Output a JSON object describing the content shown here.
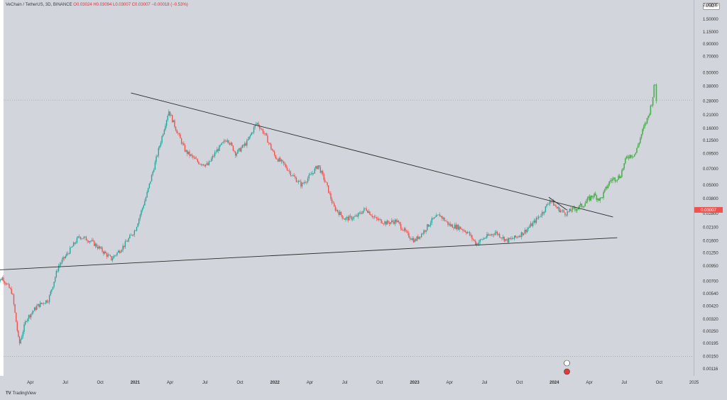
{
  "header": {
    "symbol": "VeChain / TetherUS, 3D, BINANCE",
    "o": "O0.03024",
    "h": "H0.03094",
    "l": "L0.03007",
    "c": "C0.03007",
    "chg": "−0.00018 (−0.53%)"
  },
  "currency_button": "USDT",
  "price_tag": "0.03007",
  "brand": "TradingView",
  "colors": {
    "background": "#d3d5dc",
    "up_candle": "#26a69a",
    "down_candle": "#ef5350",
    "projection": "#4caf50",
    "trendline": "#2b2b2b",
    "price_tag": "#ef5350"
  },
  "chart_data": {
    "type": "candlestick",
    "scale": "log",
    "ylim": [
      0.00116,
      2.0
    ],
    "y_ticks": [
      "2.00000",
      "1.50000",
      "1.15000",
      "0.90000",
      "0.70000",
      "0.50000",
      "0.38000",
      "0.28000",
      "0.21000",
      "0.16000",
      "0.12500",
      "0.09500",
      "0.07000",
      "0.05000",
      "0.03800",
      "0.02800",
      "0.02100",
      "0.01600",
      "0.01250",
      "0.00950",
      "0.00700",
      "0.00540",
      "0.00420",
      "0.00320",
      "0.00250",
      "0.00195",
      "0.00150",
      "0.00116"
    ],
    "x_ticks": [
      {
        "label": "Apr",
        "t": 2020.25
      },
      {
        "label": "Jul",
        "t": 2020.5
      },
      {
        "label": "Oct",
        "t": 2020.75
      },
      {
        "label": "2021",
        "t": 2021.0,
        "bold": true
      },
      {
        "label": "Apr",
        "t": 2021.25
      },
      {
        "label": "Jul",
        "t": 2021.5
      },
      {
        "label": "Oct",
        "t": 2021.75
      },
      {
        "label": "2022",
        "t": 2022.0,
        "bold": true
      },
      {
        "label": "Apr",
        "t": 2022.25
      },
      {
        "label": "Jul",
        "t": 2022.5
      },
      {
        "label": "Oct",
        "t": 2022.75
      },
      {
        "label": "2023",
        "t": 2023.0,
        "bold": true
      },
      {
        "label": "Apr",
        "t": 2023.25
      },
      {
        "label": "Jul",
        "t": 2023.5
      },
      {
        "label": "Oct",
        "t": 2023.75
      },
      {
        "label": "2024",
        "t": 2024.0,
        "bold": true
      },
      {
        "label": "Apr",
        "t": 2024.25
      },
      {
        "label": "Jul",
        "t": 2024.5
      },
      {
        "label": "Oct",
        "t": 2024.75
      },
      {
        "label": "2025",
        "t": 2025.0
      }
    ],
    "price_path": [
      [
        2020.0,
        0.0065
      ],
      [
        2020.05,
        0.0075
      ],
      [
        2020.12,
        0.0055
      ],
      [
        2020.17,
        0.0019
      ],
      [
        2020.22,
        0.0032
      ],
      [
        2020.3,
        0.0042
      ],
      [
        2020.38,
        0.0048
      ],
      [
        2020.45,
        0.0095
      ],
      [
        2020.52,
        0.0125
      ],
      [
        2020.6,
        0.0175
      ],
      [
        2020.68,
        0.016
      ],
      [
        2020.75,
        0.0135
      ],
      [
        2020.83,
        0.011
      ],
      [
        2020.92,
        0.0145
      ],
      [
        2021.0,
        0.02
      ],
      [
        2021.08,
        0.04
      ],
      [
        2021.16,
        0.095
      ],
      [
        2021.24,
        0.23
      ],
      [
        2021.29,
        0.16
      ],
      [
        2021.36,
        0.1
      ],
      [
        2021.45,
        0.08
      ],
      [
        2021.52,
        0.075
      ],
      [
        2021.58,
        0.1
      ],
      [
        2021.66,
        0.13
      ],
      [
        2021.72,
        0.095
      ],
      [
        2021.8,
        0.12
      ],
      [
        2021.87,
        0.18
      ],
      [
        2021.93,
        0.14
      ],
      [
        2022.0,
        0.09
      ],
      [
        2022.07,
        0.075
      ],
      [
        2022.13,
        0.06
      ],
      [
        2022.19,
        0.05
      ],
      [
        2022.25,
        0.06
      ],
      [
        2022.31,
        0.075
      ],
      [
        2022.37,
        0.05
      ],
      [
        2022.42,
        0.032
      ],
      [
        2022.5,
        0.025
      ],
      [
        2022.58,
        0.026
      ],
      [
        2022.65,
        0.031
      ],
      [
        2022.72,
        0.025
      ],
      [
        2022.8,
        0.023
      ],
      [
        2022.87,
        0.024
      ],
      [
        2022.95,
        0.018
      ],
      [
        2023.0,
        0.016
      ],
      [
        2023.06,
        0.019
      ],
      [
        2023.12,
        0.024
      ],
      [
        2023.18,
        0.027
      ],
      [
        2023.25,
        0.022
      ],
      [
        2023.32,
        0.021
      ],
      [
        2023.38,
        0.019
      ],
      [
        2023.44,
        0.015
      ],
      [
        2023.5,
        0.017
      ],
      [
        2023.58,
        0.019
      ],
      [
        2023.66,
        0.016
      ],
      [
        2023.72,
        0.017
      ],
      [
        2023.78,
        0.019
      ],
      [
        2023.85,
        0.023
      ],
      [
        2023.92,
        0.029
      ],
      [
        2023.97,
        0.037
      ],
      [
        2024.02,
        0.031
      ],
      [
        2024.08,
        0.028
      ],
      [
        2024.13,
        0.03
      ]
    ],
    "projection_path": [
      [
        2024.13,
        0.03
      ],
      [
        2024.2,
        0.033
      ],
      [
        2024.28,
        0.041
      ],
      [
        2024.33,
        0.037
      ],
      [
        2024.4,
        0.055
      ],
      [
        2024.47,
        0.06
      ],
      [
        2024.52,
        0.09
      ],
      [
        2024.58,
        0.095
      ],
      [
        2024.63,
        0.15
      ],
      [
        2024.67,
        0.2
      ],
      [
        2024.7,
        0.28
      ],
      [
        2024.72,
        0.42
      ],
      [
        2024.735,
        0.24
      ]
    ],
    "trendlines": [
      {
        "from": [
          2020.97,
          0.33
        ],
        "to": [
          2024.42,
          0.026
        ]
      },
      {
        "from": [
          2019.95,
          0.0087
        ],
        "to": [
          2024.45,
          0.017
        ]
      },
      {
        "from": [
          2023.96,
          0.039
        ],
        "to": [
          2024.09,
          0.03
        ]
      }
    ],
    "horizontal_lines": [
      0.285,
      0.0015
    ],
    "current_price": 0.03007
  }
}
